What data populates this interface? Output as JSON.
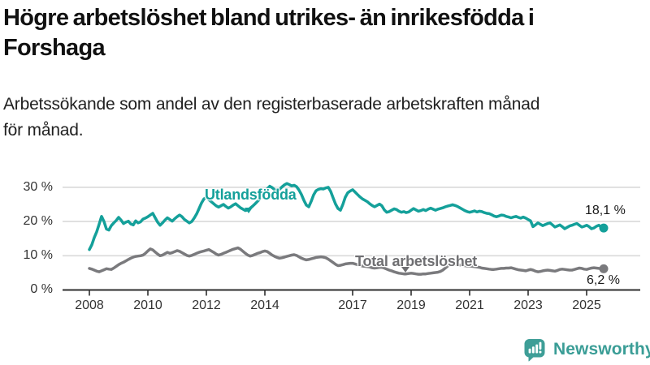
{
  "header": {
    "title_lines": [
      "Högre arbetslöshet bland utrikes- än inrikesfödda i",
      "Forshaga"
    ],
    "subtitle_lines": [
      "Arbetssökande som andel av den registerbaserade arbetskraften månad",
      "för månad."
    ]
  },
  "footer": {
    "brand": "Newsworthy",
    "logo_icon": "speech-bubble-bar-chart-icon",
    "brand_color": "#3A9D96"
  },
  "chart_data": {
    "type": "line",
    "title": "Högre arbetslöshet bland utrikes- än inrikesfödda i Forshaga",
    "subtitle": "Arbetssökande som andel av den registerbaserade arbetskraften månad för månad.",
    "xlabel": "",
    "ylabel": "",
    "ylim": [
      0,
      33
    ],
    "grid": true,
    "legend_position": "inline-labels",
    "y_ticks": [
      {
        "value": 0,
        "label": "0 %"
      },
      {
        "value": 10,
        "label": "10 %"
      },
      {
        "value": 20,
        "label": "20 %"
      },
      {
        "value": 30,
        "label": "30 %"
      }
    ],
    "x_ticks": [
      2008,
      2010,
      2012,
      2014,
      2017,
      2019,
      2021,
      2023,
      2025
    ],
    "x_axis": {
      "start_year": 2008,
      "interval_months": 1,
      "end": "aug 2025"
    },
    "colors": {
      "grid": "#DADADA",
      "axis": "#2E2E2E",
      "tick_text": "#333333"
    },
    "series": [
      {
        "name": "Utlandsfödda",
        "color": "#14A09A",
        "end_label": "18,1 %",
        "end_value": 18.1,
        "caret_anchor": {
          "year": 2013.45,
          "value": 24.0
        },
        "values": [
          11.8,
          13.2,
          15.3,
          17.0,
          19.2,
          21.5,
          20.0,
          17.8,
          17.5,
          18.8,
          19.6,
          20.3,
          21.2,
          20.4,
          19.4,
          19.8,
          20.1,
          19.3,
          19.0,
          20.2,
          19.6,
          19.9,
          20.7,
          21.0,
          21.4,
          21.9,
          22.4,
          21.1,
          19.8,
          18.9,
          19.6,
          20.4,
          21.1,
          20.6,
          20.1,
          20.8,
          21.4,
          21.9,
          21.4,
          20.6,
          20.1,
          19.6,
          20.0,
          21.0,
          22.2,
          23.8,
          25.4,
          26.6,
          27.0,
          26.4,
          25.8,
          25.2,
          24.6,
          24.2,
          24.6,
          25.0,
          24.4,
          23.9,
          24.3,
          24.8,
          25.2,
          24.6,
          24.0,
          23.6,
          23.2,
          23.4,
          23.9,
          24.5,
          25.2,
          25.9,
          26.6,
          27.6,
          28.6,
          29.6,
          30.3,
          29.9,
          29.3,
          28.9,
          29.4,
          30.1,
          30.7,
          31.1,
          30.8,
          30.4,
          30.6,
          30.2,
          29.2,
          27.9,
          26.2,
          24.8,
          24.3,
          25.9,
          27.8,
          29.0,
          29.4,
          29.6,
          29.5,
          29.8,
          30.0,
          28.8,
          26.9,
          25.1,
          23.8,
          23.3,
          25.0,
          27.1,
          28.4,
          28.9,
          29.3,
          28.6,
          27.9,
          27.2,
          26.6,
          26.2,
          25.8,
          25.2,
          24.7,
          24.3,
          24.7,
          25.1,
          24.6,
          23.4,
          22.7,
          22.9,
          23.3,
          23.7,
          23.5,
          23.0,
          22.7,
          22.9,
          22.6,
          22.8,
          23.3,
          23.8,
          23.4,
          23.0,
          23.2,
          23.5,
          23.2,
          23.6,
          23.9,
          23.6,
          23.3,
          23.6,
          23.8,
          24.0,
          24.3,
          24.5,
          24.7,
          24.9,
          24.7,
          24.4,
          24.0,
          23.6,
          23.2,
          22.9,
          22.7,
          22.9,
          23.1,
          22.8,
          23.0,
          22.9,
          22.6,
          22.4,
          22.3,
          22.0,
          21.6,
          21.4,
          21.6,
          21.9,
          21.8,
          21.5,
          21.3,
          21.1,
          21.3,
          21.5,
          21.2,
          21.0,
          21.3,
          21.0,
          20.6,
          20.2,
          18.5,
          19.0,
          19.6,
          19.2,
          18.8,
          19.1,
          19.4,
          19.6,
          19.0,
          18.4,
          18.7,
          19.0,
          18.5,
          17.9,
          18.3,
          18.7,
          18.9,
          19.2,
          19.4,
          18.9,
          18.4,
          18.6,
          18.9,
          18.5,
          17.9,
          18.1,
          18.6,
          18.9,
          18.4,
          18.1
        ]
      },
      {
        "name": "Total arbetslöshet",
        "color": "#7A7A7D",
        "end_label": "6,2 %",
        "end_value": 6.2,
        "caret_anchor": {
          "year": 2018.8,
          "value": 6.8
        },
        "values": [
          6.3,
          6.1,
          5.8,
          5.5,
          5.3,
          5.6,
          5.9,
          6.2,
          6.1,
          6.0,
          6.4,
          6.9,
          7.4,
          7.8,
          8.1,
          8.5,
          8.9,
          9.3,
          9.6,
          9.8,
          9.9,
          10.0,
          10.2,
          10.7,
          11.4,
          12.0,
          11.7,
          11.1,
          10.5,
          10.0,
          10.2,
          10.6,
          11.0,
          10.7,
          10.9,
          11.2,
          11.5,
          11.3,
          10.9,
          10.5,
          10.1,
          9.9,
          10.1,
          10.4,
          10.7,
          11.0,
          11.2,
          11.4,
          11.6,
          11.8,
          11.4,
          11.0,
          10.5,
          10.2,
          10.4,
          10.7,
          11.0,
          11.3,
          11.6,
          11.9,
          12.1,
          12.3,
          11.9,
          11.3,
          10.7,
          10.2,
          9.9,
          10.1,
          10.4,
          10.7,
          10.9,
          11.2,
          11.4,
          11.2,
          10.7,
          10.2,
          9.8,
          9.5,
          9.3,
          9.4,
          9.6,
          9.8,
          10.0,
          10.2,
          10.3,
          10.1,
          9.7,
          9.3,
          9.0,
          8.8,
          8.9,
          9.1,
          9.3,
          9.5,
          9.6,
          9.7,
          9.6,
          9.4,
          9.0,
          8.5,
          8.0,
          7.5,
          7.1,
          7.2,
          7.4,
          7.6,
          7.7,
          7.8,
          7.8,
          7.6,
          7.4,
          7.2,
          7.0,
          6.9,
          6.8,
          6.7,
          6.5,
          6.4,
          6.5,
          6.6,
          6.6,
          6.4,
          6.1,
          5.8,
          5.6,
          5.3,
          5.1,
          4.9,
          4.8,
          4.7,
          4.7,
          4.8,
          4.9,
          4.8,
          4.7,
          4.6,
          4.6,
          4.7,
          4.7,
          4.8,
          4.9,
          5.0,
          5.1,
          5.2,
          5.4,
          5.8,
          6.4,
          7.0,
          7.4,
          7.6,
          7.5,
          7.4,
          7.3,
          7.2,
          7.1,
          7.0,
          7.0,
          6.9,
          6.8,
          6.7,
          6.6,
          6.4,
          6.3,
          6.2,
          6.1,
          6.0,
          6.0,
          6.1,
          6.2,
          6.3,
          6.3,
          6.4,
          6.4,
          6.5,
          6.3,
          6.1,
          5.9,
          5.8,
          5.7,
          5.6,
          5.8,
          6.0,
          5.8,
          5.5,
          5.3,
          5.4,
          5.6,
          5.7,
          5.8,
          5.7,
          5.6,
          5.5,
          5.7,
          6.0,
          6.1,
          6.0,
          5.9,
          5.8,
          5.8,
          6.0,
          6.2,
          6.4,
          6.3,
          6.1,
          6.0,
          6.2,
          6.4,
          6.5,
          6.4,
          6.3,
          6.2,
          6.2
        ]
      }
    ]
  }
}
